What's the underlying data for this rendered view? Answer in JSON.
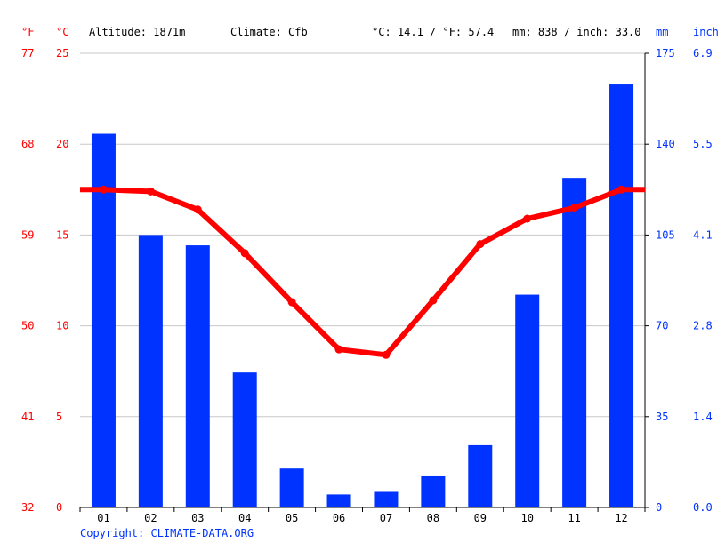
{
  "header": {
    "unit_f": "°F",
    "unit_c": "°C",
    "altitude": "Altitude: 1871m",
    "climate": "Climate: Cfb",
    "temp_summary": "°C: 14.1 / °F: 57.4",
    "precip_summary": "mm: 838 / inch: 33.0",
    "unit_mm": "mm",
    "unit_inch": "inch"
  },
  "footer": {
    "copyright": "Copyright: CLIMATE-DATA.ORG"
  },
  "colors": {
    "temperature": "#ff0000",
    "precipitation": "#0033ff",
    "grid": "#c8c8c8",
    "axis": "#000000"
  },
  "chart_data": {
    "type": "bar",
    "categories": [
      "01",
      "02",
      "03",
      "04",
      "05",
      "06",
      "07",
      "08",
      "09",
      "10",
      "11",
      "12"
    ],
    "series": [
      {
        "type": "bar",
        "axis": "right",
        "values": [
          144,
          105,
          101,
          52,
          15,
          5,
          6,
          12,
          24,
          82,
          127,
          163
        ]
      },
      {
        "type": "line",
        "axis": "left",
        "values": [
          17.5,
          17.4,
          16.4,
          14.0,
          11.3,
          8.7,
          8.4,
          11.4,
          14.5,
          15.9,
          16.5,
          17.5
        ]
      }
    ],
    "left_axis": {
      "celsius_ticks": [
        "25",
        "20",
        "15",
        "10",
        "5",
        "0"
      ],
      "fahrenheit_ticks": [
        "77",
        "68",
        "59",
        "50",
        "41",
        "32"
      ],
      "ylim": [
        0,
        25
      ]
    },
    "right_axis": {
      "mm_ticks": [
        "175",
        "140",
        "105",
        "70",
        "35",
        "0"
      ],
      "inch_ticks": [
        "6.9",
        "5.5",
        "4.1",
        "2.8",
        "1.4",
        "0.0"
      ],
      "ylim": [
        0,
        175
      ]
    },
    "grid": true
  }
}
